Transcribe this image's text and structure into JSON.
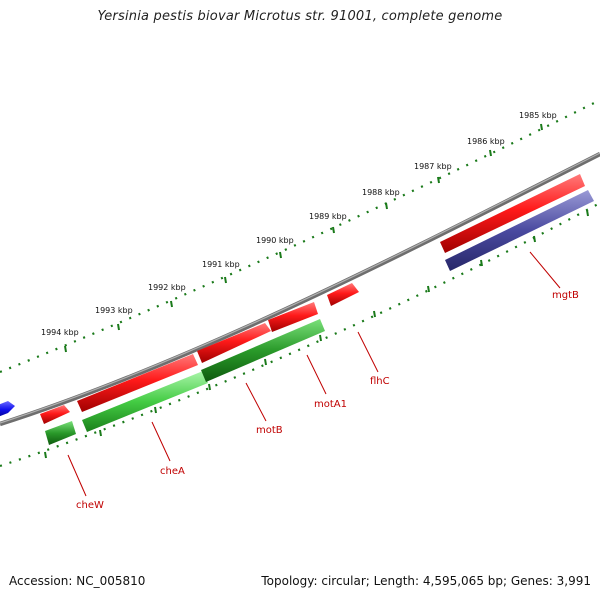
{
  "title": "Yersinia pestis biovar Microtus str. 91001, complete genome",
  "footer": {
    "accession": "Accession: NC_005810",
    "summary": "Topology: circular; Length: 4,595,065 bp; Genes: 3,991"
  },
  "ticks": [
    "1985 kbp",
    "1986 kbp",
    "1987 kbp",
    "1988 kbp",
    "1989 kbp",
    "1990 kbp",
    "1991 kbp",
    "1992 kbp",
    "1993 kbp",
    "1994 kbp"
  ],
  "genes": [
    "cheW",
    "cheA",
    "motB",
    "motA1",
    "flhC",
    "mgtB"
  ],
  "colors": {
    "forward_strand": "#ee1111",
    "reverse_strand": "#22aa22",
    "reverse_strand_alt": "#44cc44",
    "other_feature": "#4a4aa0",
    "blue_feature": "#1111ee",
    "backbone": "#808080",
    "tick": "#1a7a1a",
    "label": "#c00000"
  }
}
